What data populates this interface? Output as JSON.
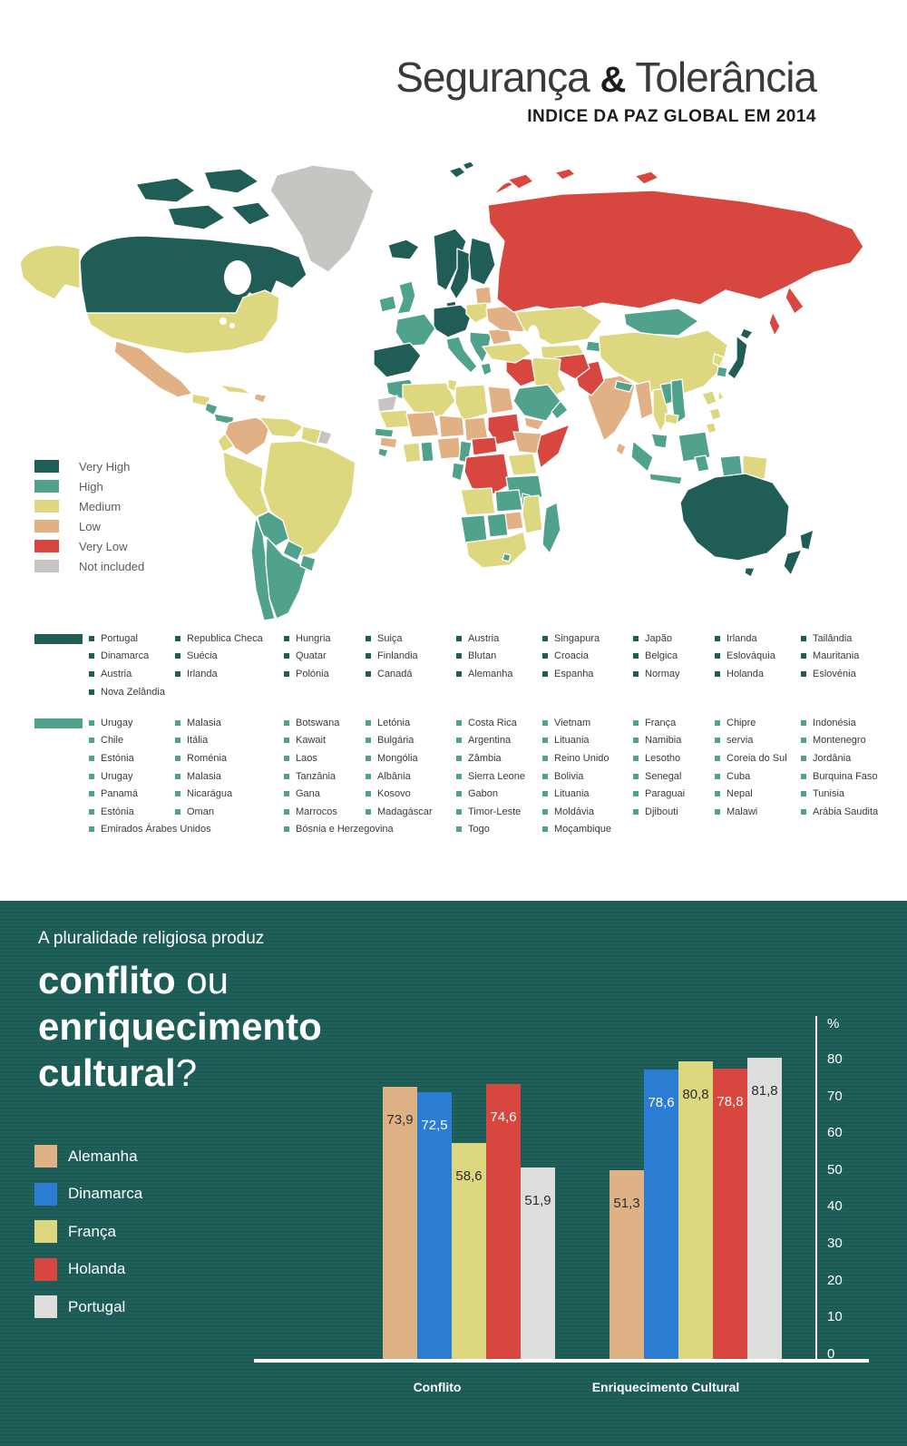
{
  "header": {
    "title_part1": "Segurança ",
    "title_amp": "&",
    "title_part2": " Tolerância",
    "subtitle": "INDICE DA PAZ GLOBAL EM 2014"
  },
  "map_legend": {
    "items": [
      {
        "label": "Very High",
        "color": "#1f5d56"
      },
      {
        "label": "High",
        "color": "#50a28c"
      },
      {
        "label": "Medium",
        "color": "#ddd77f"
      },
      {
        "label": "Low",
        "color": "#e1b185"
      },
      {
        "label": "Very Low",
        "color": "#d7463f"
      },
      {
        "label": "Not included",
        "color": "#c7c5c2"
      }
    ]
  },
  "country_groups": [
    {
      "level": "Very High",
      "color": "#1f5d56",
      "columns": [
        [
          "Portugal",
          "Dinamarca",
          "Austria",
          "Nova Zelândia"
        ],
        [
          "Republica Checa",
          "Suécia",
          "Irlanda"
        ],
        [
          "Hungria",
          "Quatar",
          "Polónia"
        ],
        [
          "Suiça",
          "Finlandia",
          "Canadá"
        ],
        [
          "Austria",
          "Blutan",
          "Alemanha"
        ],
        [
          "Singapura",
          "Croacia",
          "Espanha"
        ],
        [
          "Japão",
          "Belgica",
          "Normay"
        ],
        [
          "Irlanda",
          "Eslováquia",
          "Holanda"
        ],
        [
          "Tailândia",
          "Mauritania",
          "Eslovénia"
        ]
      ]
    },
    {
      "level": "High",
      "color": "#50a28c",
      "columns": [
        [
          "Urugay",
          "Chile",
          "Estónia",
          "Urugay",
          "Panamá",
          "Estónia",
          "Emirados Árabes Unidos"
        ],
        [
          "Malasia",
          "Itália",
          "Roménia",
          "Malasia",
          "Nicarágua",
          "Oman"
        ],
        [
          "Botswana",
          "Kawait",
          "Laos",
          "Tanzânia",
          "Gana",
          "Marrocos",
          "Bósnia e Herzegovina"
        ],
        [
          "Letónia",
          "Bulgária",
          "Mongólia",
          "Albânia",
          "Kosovo",
          "Madagáscar"
        ],
        [
          "Costa Rica",
          "Argentina",
          "Zâmbia",
          "Sierra Leone",
          "Gabon",
          "Timor-Leste",
          "Togo"
        ],
        [
          "Vietnam",
          "Lituania",
          "Reino Unido",
          "Bolivia",
          "Lituania",
          "Moldávia",
          "Moçambique"
        ],
        [
          "França",
          "Namibia",
          "Lesotho",
          "Senegal",
          "Paraguai",
          "Djibouti"
        ],
        [
          "Chipre",
          "servia",
          "Coreia do Sul",
          "Cuba",
          "Nepal",
          "Malawi"
        ],
        [
          "Indonésia",
          "Montenegro",
          "Jordânia",
          "Burquina Faso",
          "Tunisia",
          "Arábia Saudita"
        ]
      ]
    }
  ],
  "question": {
    "intro": "A pluralidade religiosa produz",
    "l1b": "conflito",
    "l1r": " ou",
    "l2b": "enriquecimento",
    "l3b": "cultural",
    "l3r": "?"
  },
  "chart_data": [
    {
      "type": "choropleth-map",
      "title": "Indice da Paz Global em 2014",
      "legend_categories": [
        "Very High",
        "High",
        "Medium",
        "Low",
        "Very Low",
        "Not included"
      ]
    },
    {
      "type": "bar",
      "categories": [
        "Conflito",
        "Enriquecimento Cultural"
      ],
      "series": [
        {
          "name": "Alemanha",
          "color": "#dfb285",
          "value_text_color": "#2d2d2d",
          "values": [
            73.9,
            51.3
          ]
        },
        {
          "name": "Dinamarca",
          "color": "#2b7dd4",
          "value_text_color": "#ffffff",
          "values": [
            72.5,
            78.6
          ]
        },
        {
          "name": "França",
          "color": "#ddd77f",
          "value_text_color": "#2d2d2d",
          "values": [
            58.6,
            80.8
          ]
        },
        {
          "name": "Holanda",
          "color": "#d7463f",
          "value_text_color": "#ffffff",
          "values": [
            74.6,
            78.8
          ]
        },
        {
          "name": "Portugal",
          "color": "#dddddc",
          "value_text_color": "#2d2d2d",
          "values": [
            51.9,
            81.8
          ]
        }
      ],
      "ylabel": "%",
      "ylim": [
        0,
        90
      ],
      "ytick_labels": [
        "%",
        "80",
        "70",
        "60",
        "50",
        "40",
        "30",
        "20",
        "10",
        "0"
      ],
      "legend_position": "left",
      "grid": false
    }
  ]
}
